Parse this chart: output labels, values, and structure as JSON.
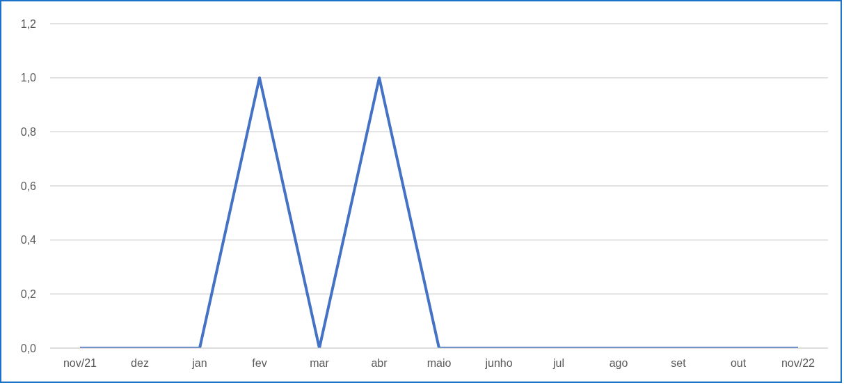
{
  "chart_data": {
    "type": "line",
    "categories": [
      "nov/21",
      "dez",
      "jan",
      "fev",
      "mar",
      "abr",
      "maio",
      "junho",
      "jul",
      "ago",
      "set",
      "out",
      "nov/22"
    ],
    "series": [
      {
        "color": "#4472c4",
        "values": [
          0,
          0,
          0,
          1,
          0,
          1,
          0,
          0,
          0,
          0,
          0,
          0,
          0
        ]
      }
    ],
    "ylim": [
      0,
      1.2
    ],
    "yticks": [
      {
        "value": 0,
        "label": "0,0"
      },
      {
        "value": 0.2,
        "label": "0,2"
      },
      {
        "value": 0.4,
        "label": "0,4"
      },
      {
        "value": 0.6,
        "label": "0,6"
      },
      {
        "value": 0.8,
        "label": "0,8"
      },
      {
        "value": 1,
        "label": "1,0"
      },
      {
        "value": 1.2,
        "label": "1,2"
      }
    ],
    "grid": "y",
    "legend": false,
    "marker": "none",
    "line_style": "solid"
  }
}
